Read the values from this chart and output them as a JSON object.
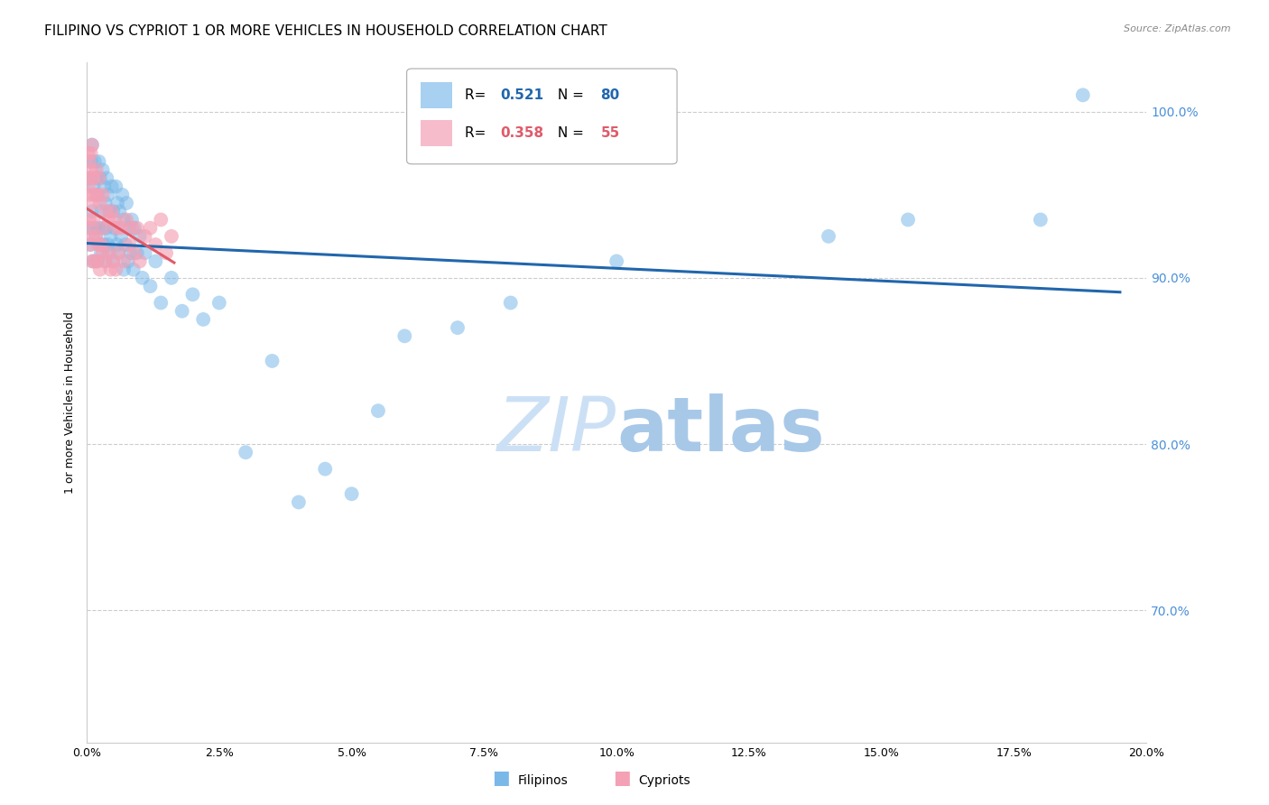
{
  "title": "FILIPINO VS CYPRIOT 1 OR MORE VEHICLES IN HOUSEHOLD CORRELATION CHART",
  "source": "Source: ZipAtlas.com",
  "ylabel": "1 or more Vehicles in Household",
  "x_min": 0.0,
  "x_max": 20.0,
  "y_min": 62.0,
  "y_max": 103.0,
  "y_ticks": [
    70.0,
    80.0,
    90.0,
    100.0
  ],
  "x_ticks": [
    0.0,
    2.5,
    5.0,
    7.5,
    10.0,
    12.5,
    15.0,
    17.5,
    20.0
  ],
  "r_filipino": 0.521,
  "n_filipino": 80,
  "r_cypriot": 0.358,
  "n_cypriot": 55,
  "blue_color": "#7ab8e8",
  "pink_color": "#f4a0b5",
  "blue_line_color": "#2166ac",
  "pink_line_color": "#e05a6a",
  "watermark_color": "#cce0f5",
  "background_color": "#ffffff",
  "grid_color": "#cccccc",
  "right_tick_color": "#4a90d9",
  "title_fontsize": 11,
  "axis_label_fontsize": 9,
  "tick_fontsize": 9,
  "filipino_x": [
    0.05,
    0.05,
    0.07,
    0.08,
    0.1,
    0.1,
    0.12,
    0.13,
    0.15,
    0.15,
    0.17,
    0.18,
    0.2,
    0.2,
    0.22,
    0.23,
    0.25,
    0.25,
    0.27,
    0.28,
    0.3,
    0.3,
    0.32,
    0.33,
    0.35,
    0.35,
    0.37,
    0.38,
    0.4,
    0.4,
    0.42,
    0.43,
    0.45,
    0.47,
    0.5,
    0.5,
    0.52,
    0.55,
    0.57,
    0.58,
    0.6,
    0.62,
    0.65,
    0.67,
    0.7,
    0.7,
    0.73,
    0.75,
    0.78,
    0.8,
    0.83,
    0.85,
    0.88,
    0.9,
    0.95,
    1.0,
    1.05,
    1.1,
    1.2,
    1.3,
    1.4,
    1.6,
    1.8,
    2.0,
    2.2,
    2.5,
    3.0,
    3.5,
    4.0,
    4.5,
    5.0,
    5.5,
    6.0,
    7.0,
    8.0,
    10.0,
    14.0,
    15.5,
    18.0,
    18.8
  ],
  "filipino_y": [
    93.0,
    96.0,
    92.0,
    97.0,
    94.0,
    98.0,
    91.0,
    95.5,
    93.0,
    97.0,
    92.5,
    96.0,
    91.0,
    95.0,
    93.0,
    97.0,
    92.0,
    96.0,
    91.5,
    94.0,
    93.0,
    96.5,
    92.0,
    95.5,
    91.0,
    94.5,
    93.0,
    96.0,
    92.0,
    95.0,
    91.5,
    94.0,
    92.5,
    95.5,
    91.0,
    94.0,
    93.0,
    95.5,
    92.0,
    94.5,
    91.5,
    94.0,
    92.5,
    95.0,
    90.5,
    93.5,
    92.0,
    94.5,
    91.0,
    93.0,
    91.5,
    93.5,
    90.5,
    93.0,
    91.5,
    92.5,
    90.0,
    91.5,
    89.5,
    91.0,
    88.5,
    90.0,
    88.0,
    89.0,
    87.5,
    88.5,
    79.5,
    85.0,
    76.5,
    78.5,
    77.0,
    82.0,
    86.5,
    87.0,
    88.5,
    91.0,
    92.5,
    93.5,
    93.5,
    101.0
  ],
  "cypriot_x": [
    0.03,
    0.03,
    0.04,
    0.05,
    0.05,
    0.06,
    0.07,
    0.07,
    0.08,
    0.08,
    0.1,
    0.1,
    0.1,
    0.12,
    0.12,
    0.13,
    0.15,
    0.15,
    0.17,
    0.18,
    0.2,
    0.2,
    0.22,
    0.23,
    0.25,
    0.25,
    0.27,
    0.3,
    0.3,
    0.32,
    0.35,
    0.37,
    0.4,
    0.42,
    0.45,
    0.47,
    0.5,
    0.52,
    0.55,
    0.58,
    0.6,
    0.65,
    0.7,
    0.75,
    0.8,
    0.85,
    0.9,
    0.95,
    1.0,
    1.1,
    1.2,
    1.3,
    1.4,
    1.5,
    1.6
  ],
  "cypriot_y": [
    95.5,
    97.5,
    96.0,
    93.5,
    97.0,
    95.0,
    92.0,
    96.5,
    93.0,
    97.5,
    91.0,
    94.5,
    98.0,
    92.5,
    96.0,
    93.5,
    91.0,
    95.0,
    92.5,
    96.5,
    91.0,
    95.0,
    92.0,
    96.0,
    90.5,
    94.5,
    92.0,
    91.5,
    95.0,
    93.0,
    91.0,
    94.0,
    91.5,
    93.5,
    90.5,
    94.0,
    91.0,
    93.5,
    90.5,
    93.0,
    91.5,
    93.0,
    91.0,
    93.5,
    92.0,
    93.0,
    91.5,
    93.0,
    91.0,
    92.5,
    93.0,
    92.0,
    93.5,
    91.5,
    92.5
  ]
}
